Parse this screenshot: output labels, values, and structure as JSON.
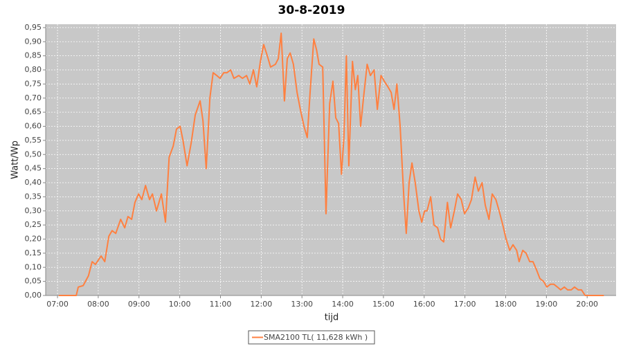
{
  "chart_data": {
    "type": "line",
    "title": "30-8-2019",
    "x_label": "tijd",
    "y_label": "Watt/Wp",
    "xlim": [
      6.71,
      20.71
    ],
    "ylim": [
      0,
      0.962
    ],
    "grid": true,
    "xticks": [
      {
        "value": 7,
        "label": "07:00"
      },
      {
        "value": 8,
        "label": "08:00"
      },
      {
        "value": 9,
        "label": "09:00"
      },
      {
        "value": 10,
        "label": "10:00"
      },
      {
        "value": 11,
        "label": "11:00"
      },
      {
        "value": 12,
        "label": "12:00"
      },
      {
        "value": 13,
        "label": "13:00"
      },
      {
        "value": 14,
        "label": "14:00"
      },
      {
        "value": 15,
        "label": "15:00"
      },
      {
        "value": 16,
        "label": "16:00"
      },
      {
        "value": 17,
        "label": "17:00"
      },
      {
        "value": 18,
        "label": "18:00"
      },
      {
        "value": 19,
        "label": "19:00"
      },
      {
        "value": 20,
        "label": "20:00"
      }
    ],
    "yticks": [
      {
        "value": 0,
        "label": "0,00"
      },
      {
        "value": 0.05,
        "label": "0,05"
      },
      {
        "value": 0.1,
        "label": "0,10"
      },
      {
        "value": 0.15,
        "label": "0,15"
      },
      {
        "value": 0.2,
        "label": "0,20"
      },
      {
        "value": 0.25,
        "label": "0,25"
      },
      {
        "value": 0.3,
        "label": "0,30"
      },
      {
        "value": 0.35,
        "label": "0,35"
      },
      {
        "value": 0.4,
        "label": "0,40"
      },
      {
        "value": 0.45,
        "label": "0,45"
      },
      {
        "value": 0.5,
        "label": "0,50"
      },
      {
        "value": 0.55,
        "label": "0,55"
      },
      {
        "value": 0.6,
        "label": "0,60"
      },
      {
        "value": 0.65,
        "label": "0,65"
      },
      {
        "value": 0.7,
        "label": "0,70"
      },
      {
        "value": 0.75,
        "label": "0,75"
      },
      {
        "value": 0.8,
        "label": "0,80"
      },
      {
        "value": 0.85,
        "label": "0,85"
      },
      {
        "value": 0.9,
        "label": "0,90"
      },
      {
        "value": 0.95,
        "label": "0,95"
      }
    ],
    "x": [
      7.03,
      7.46,
      7.51,
      7.63,
      7.76,
      7.85,
      7.93,
      8.07,
      8.16,
      8.26,
      8.34,
      8.43,
      8.55,
      8.65,
      8.73,
      8.82,
      8.9,
      8.99,
      9.07,
      9.16,
      9.26,
      9.33,
      9.43,
      9.55,
      9.65,
      9.74,
      9.84,
      9.92,
      10.01,
      10.08,
      10.18,
      10.28,
      10.38,
      10.5,
      10.57,
      10.65,
      10.74,
      10.82,
      10.91,
      10.99,
      11.08,
      11.16,
      11.25,
      11.33,
      11.45,
      11.54,
      11.64,
      11.72,
      11.81,
      11.89,
      11.98,
      12.06,
      12.15,
      12.23,
      12.35,
      12.42,
      12.49,
      12.57,
      12.64,
      12.71,
      12.79,
      12.88,
      12.96,
      13.05,
      13.13,
      13.2,
      13.29,
      13.36,
      13.42,
      13.51,
      13.59,
      13.68,
      13.76,
      13.83,
      13.9,
      13.97,
      14.03,
      14.09,
      14.15,
      14.24,
      14.31,
      14.37,
      14.44,
      14.51,
      14.6,
      14.68,
      14.77,
      14.85,
      14.94,
      15.02,
      15.11,
      15.19,
      15.26,
      15.33,
      15.41,
      15.5,
      15.56,
      15.63,
      15.7,
      15.78,
      15.87,
      15.94,
      16.01,
      16.07,
      16.16,
      16.24,
      16.33,
      16.4,
      16.48,
      16.57,
      16.65,
      16.74,
      16.82,
      16.91,
      16.99,
      17.08,
      17.16,
      17.25,
      17.33,
      17.42,
      17.5,
      17.59,
      17.67,
      17.76,
      17.84,
      17.93,
      18.01,
      18.1,
      18.18,
      18.27,
      18.33,
      18.42,
      18.5,
      18.59,
      18.67,
      18.76,
      18.84,
      18.93,
      19.01,
      19.1,
      19.18,
      19.27,
      19.35,
      19.44,
      19.52,
      19.61,
      19.69,
      19.78,
      19.86,
      19.95,
      20.03,
      20.41
    ],
    "series": [
      {
        "name": "SMA2100 TL( 11,628 kWh )",
        "color": "#ff8040",
        "values": [
          0,
          0,
          0.03,
          0.035,
          0.07,
          0.12,
          0.11,
          0.14,
          0.12,
          0.21,
          0.23,
          0.22,
          0.27,
          0.24,
          0.28,
          0.27,
          0.33,
          0.36,
          0.34,
          0.39,
          0.34,
          0.36,
          0.3,
          0.36,
          0.26,
          0.49,
          0.53,
          0.59,
          0.6,
          0.55,
          0.46,
          0.54,
          0.64,
          0.69,
          0.62,
          0.45,
          0.7,
          0.79,
          0.78,
          0.77,
          0.79,
          0.79,
          0.8,
          0.77,
          0.78,
          0.77,
          0.78,
          0.75,
          0.8,
          0.74,
          0.83,
          0.89,
          0.85,
          0.81,
          0.82,
          0.84,
          0.93,
          0.69,
          0.84,
          0.86,
          0.82,
          0.72,
          0.66,
          0.6,
          0.56,
          0.72,
          0.91,
          0.87,
          0.82,
          0.81,
          0.29,
          0.68,
          0.76,
          0.63,
          0.61,
          0.43,
          0.56,
          0.85,
          0.46,
          0.83,
          0.73,
          0.78,
          0.6,
          0.7,
          0.82,
          0.78,
          0.8,
          0.66,
          0.78,
          0.76,
          0.74,
          0.72,
          0.66,
          0.75,
          0.6,
          0.35,
          0.22,
          0.4,
          0.47,
          0.4,
          0.3,
          0.26,
          0.3,
          0.3,
          0.35,
          0.25,
          0.24,
          0.2,
          0.19,
          0.33,
          0.24,
          0.3,
          0.36,
          0.34,
          0.29,
          0.31,
          0.34,
          0.42,
          0.37,
          0.4,
          0.32,
          0.27,
          0.36,
          0.34,
          0.3,
          0.25,
          0.2,
          0.16,
          0.18,
          0.16,
          0.12,
          0.16,
          0.15,
          0.12,
          0.12,
          0.09,
          0.06,
          0.05,
          0.03,
          0.04,
          0.04,
          0.03,
          0.02,
          0.03,
          0.02,
          0.02,
          0.03,
          0.02,
          0.02,
          0,
          0,
          0
        ]
      }
    ]
  }
}
